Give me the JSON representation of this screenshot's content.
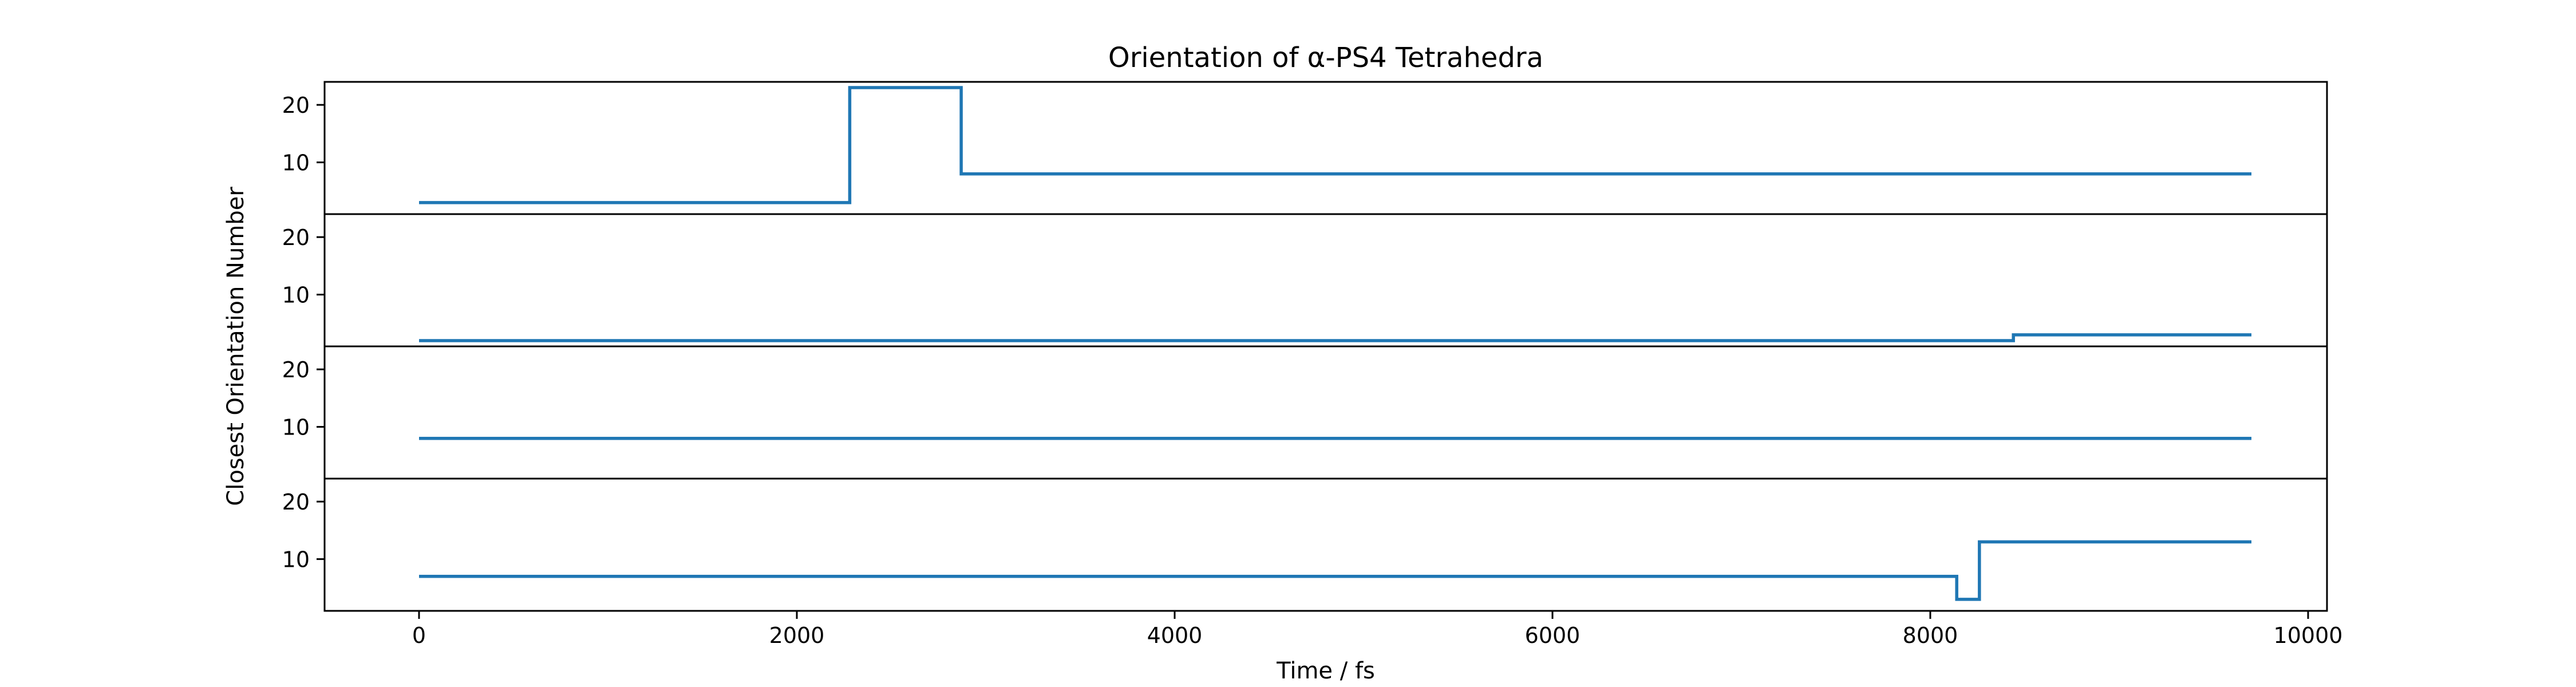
{
  "chart_data": {
    "type": "line",
    "title": "Orientation of α-PS4 Tetrahedra",
    "xlabel": "Time / fs",
    "ylabel": "Closest Orientation Number",
    "xlim": [
      -500,
      10100
    ],
    "ylim": [
      1,
      24
    ],
    "x_ticks": [
      0,
      2000,
      4000,
      6000,
      8000,
      10000
    ],
    "y_ticks": [
      10,
      20
    ],
    "grid": false,
    "line_color": "#1f77b4",
    "panels": [
      {
        "steps": [
          {
            "x": 0,
            "y": 3
          },
          {
            "x": 2280,
            "y": 23
          },
          {
            "x": 2870,
            "y": 8
          },
          {
            "x": 9700,
            "y": 8
          }
        ]
      },
      {
        "steps": [
          {
            "x": 0,
            "y": 2
          },
          {
            "x": 8440,
            "y": 3
          },
          {
            "x": 9700,
            "y": 3
          }
        ]
      },
      {
        "steps": [
          {
            "x": 0,
            "y": 8
          },
          {
            "x": 9700,
            "y": 8
          }
        ]
      },
      {
        "steps": [
          {
            "x": 0,
            "y": 7
          },
          {
            "x": 8140,
            "y": 3
          },
          {
            "x": 8260,
            "y": 13
          },
          {
            "x": 9700,
            "y": 13
          }
        ]
      }
    ]
  }
}
